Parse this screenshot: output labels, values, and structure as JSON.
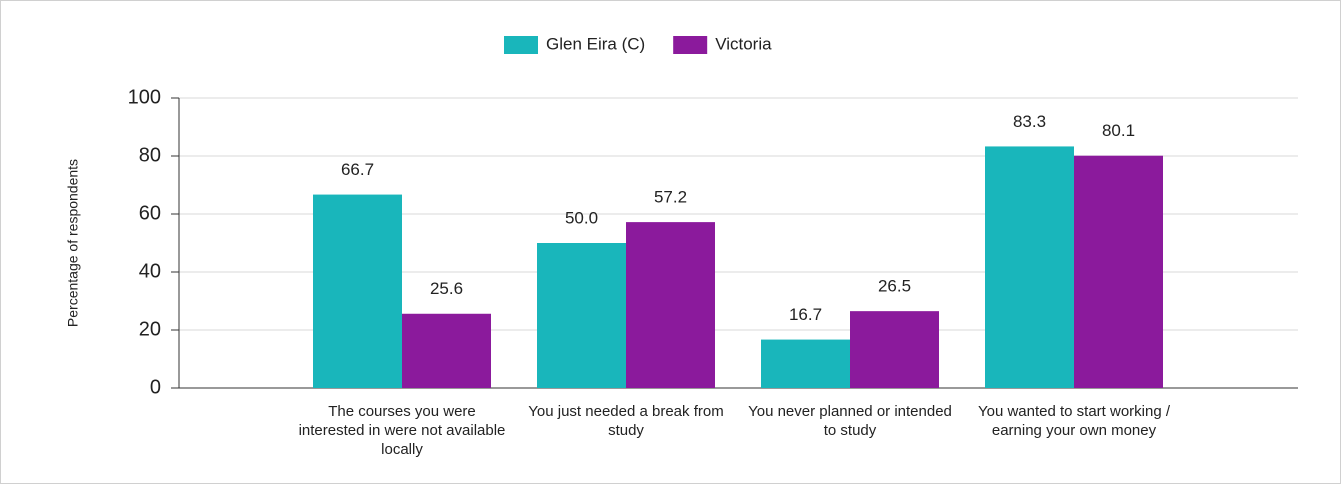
{
  "chart_data": {
    "type": "bar",
    "categories": [
      "The courses you were interested in were not available locally",
      "You just needed a break from study",
      "You never planned or intended to study",
      "You wanted to start working / earning your own money"
    ],
    "series": [
      {
        "name": "Glen Eira (C)",
        "color": "#19b6bb",
        "values": [
          66.7,
          50,
          16.7,
          83.3
        ],
        "value_labels": [
          "66.7",
          "50.0",
          "16.7",
          "83.3"
        ]
      },
      {
        "name": "Victoria",
        "color": "#8b1a9c",
        "values": [
          25.6,
          57.2,
          26.5,
          80.1
        ],
        "value_labels": [
          "25.6",
          "57.2",
          "26.5",
          "80.1"
        ]
      }
    ],
    "y_label": "Percentage of respondents",
    "ylim": [
      0,
      100
    ],
    "yticks": [
      0,
      20,
      40,
      60,
      80,
      100
    ],
    "grid": true,
    "legend": "top"
  }
}
